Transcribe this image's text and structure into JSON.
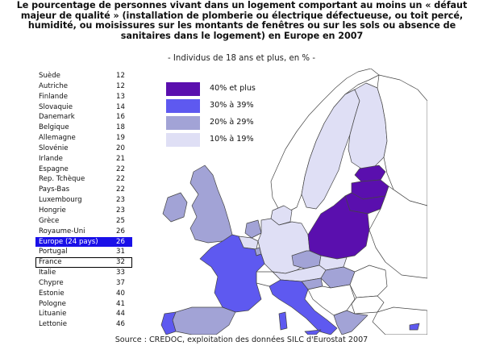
{
  "title": "Le pourcentage de personnes vivant dans un logement comportant au moins un « défaut majeur de qualité » (installation de plomberie ou électrique défectueuse, ou toit percé, humidité, ou moisissures sur les montants de fenêtres ou sur les sols ou absence de sanitaires dans le logement) en Europe en 2007",
  "subtitle": "- Individus de 18 ans et plus, en % -",
  "table": [
    {
      "country": "Suède",
      "value": "12"
    },
    {
      "country": "Autriche",
      "value": "12"
    },
    {
      "country": "Finlande",
      "value": "13"
    },
    {
      "country": "Slovaquie",
      "value": "14"
    },
    {
      "country": "Danemark",
      "value": "16"
    },
    {
      "country": "Belgique",
      "value": "18"
    },
    {
      "country": "Allemagne",
      "value": "19"
    },
    {
      "country": "Slovénie",
      "value": "20"
    },
    {
      "country": "Irlande",
      "value": "21"
    },
    {
      "country": "Espagne",
      "value": "22"
    },
    {
      "country": "Rep. Tchèque",
      "value": "22"
    },
    {
      "country": "Pays-Bas",
      "value": "22"
    },
    {
      "country": "Luxembourg",
      "value": "23"
    },
    {
      "country": "Hongrie",
      "value": "23"
    },
    {
      "country": "Grèce",
      "value": "25"
    },
    {
      "country": "Royaume-Uni",
      "value": "26"
    },
    {
      "country": "Europe (24 pays)",
      "value": "26"
    },
    {
      "country": "Portugal",
      "value": "31"
    },
    {
      "country": "France",
      "value": "32"
    },
    {
      "country": "Italie",
      "value": "33"
    },
    {
      "country": "Chypre",
      "value": "37"
    },
    {
      "country": "Estonie",
      "value": "40"
    },
    {
      "country": "Pologne",
      "value": "41"
    },
    {
      "country": "Lituanie",
      "value": "44"
    },
    {
      "country": "Lettonie",
      "value": "46"
    }
  ],
  "legend": [
    {
      "label": "40% et plus",
      "color": "#5a0fae"
    },
    {
      "label": "30% à 39%",
      "color": "#5e59f0"
    },
    {
      "label": "20% à 29%",
      "color": "#a2a3d6"
    },
    {
      "label": "10% à 19%",
      "color": "#dfdff5"
    }
  ],
  "map_colors": {
    "no_data": "#ffffff",
    "border": "#444444",
    "highlight_row_bg": "#1a10e8"
  },
  "source": "Source : CREDOC, exploitation des données SILC d'Eurostat 2007"
}
